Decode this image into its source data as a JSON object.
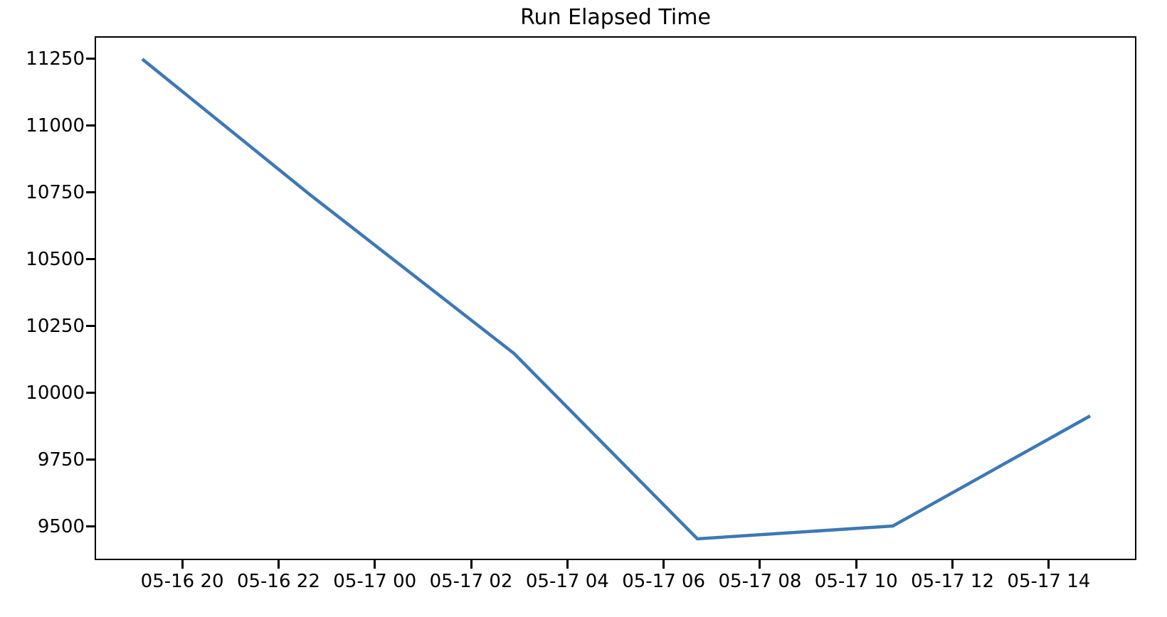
{
  "chart_data": {
    "type": "line",
    "title": "Run Elapsed Time",
    "xlabel": "",
    "ylabel": "",
    "legend": null,
    "grid": false,
    "line_color": "#3e78b4",
    "line_width": 4.5,
    "x_axis_unit": "time (MM-DD HH)",
    "xlim_hours_since_0516_0000": [
      18.18,
      39.82
    ],
    "ylim": [
      9375,
      11335
    ],
    "x_ticks": [
      {
        "label": "05-16 20",
        "hours": 20
      },
      {
        "label": "05-16 22",
        "hours": 22
      },
      {
        "label": "05-17 00",
        "hours": 24
      },
      {
        "label": "05-17 02",
        "hours": 26
      },
      {
        "label": "05-17 04",
        "hours": 28
      },
      {
        "label": "05-17 06",
        "hours": 30
      },
      {
        "label": "05-17 08",
        "hours": 32
      },
      {
        "label": "05-17 10",
        "hours": 34
      },
      {
        "label": "05-17 12",
        "hours": 36
      },
      {
        "label": "05-17 14",
        "hours": 38
      }
    ],
    "y_ticks": [
      9500,
      9750,
      10000,
      10250,
      10500,
      10750,
      11000,
      11250
    ],
    "series": [
      {
        "name": "run-elapsed-time",
        "points": [
          {
            "time": "05-16 19:08",
            "hours": 19.14,
            "value": 11255
          },
          {
            "time": "05-16 22:37",
            "hours": 22.62,
            "value": 10748
          },
          {
            "time": "05-17 02:52",
            "hours": 26.86,
            "value": 10154
          },
          {
            "time": "05-17 06:40",
            "hours": 30.67,
            "value": 9460
          },
          {
            "time": "05-17 10:44",
            "hours": 34.73,
            "value": 9508
          },
          {
            "time": "05-17 14:50",
            "hours": 38.83,
            "value": 9920
          }
        ]
      }
    ]
  }
}
